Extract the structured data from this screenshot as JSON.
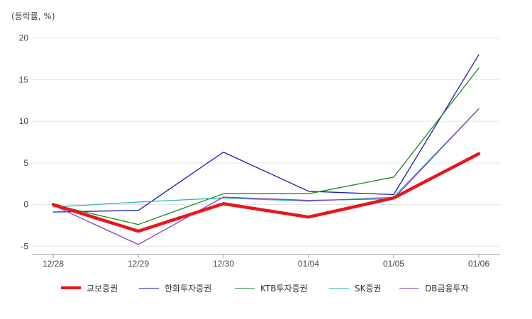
{
  "chart_data": {
    "type": "line",
    "unit_label": "(등락률, %)",
    "categories": [
      "12/28",
      "12/29",
      "12/30",
      "01/04",
      "01/05",
      "01/06"
    ],
    "ylim": [
      -6,
      21
    ],
    "yticks": [
      -5,
      0,
      5,
      10,
      15,
      20
    ],
    "grid": true,
    "legend_position": "bottom",
    "series": [
      {
        "name": "교보증권",
        "color": "#e8161b",
        "width": 4.5,
        "values": [
          0,
          -3.2,
          0.1,
          -1.5,
          0.8,
          6.1
        ]
      },
      {
        "name": "한화투자증권",
        "color": "#1a1ab8",
        "width": 1.3,
        "values": [
          -0.9,
          -0.7,
          6.3,
          1.6,
          1.2,
          18.0
        ]
      },
      {
        "name": "KTB투자증권",
        "color": "#1a8a1a",
        "width": 1.3,
        "values": [
          0,
          -2.4,
          1.3,
          1.3,
          3.3,
          16.4
        ]
      },
      {
        "name": "SK증권",
        "color": "#2bb3b3",
        "width": 1.3,
        "values": [
          -0.3,
          0.3,
          0.8,
          0.4,
          0.9,
          11.5
        ]
      },
      {
        "name": "DB금융투자",
        "color": "#8a3fc4",
        "width": 1.3,
        "values": [
          -0.1,
          -4.8,
          0.9,
          0.5,
          0.7,
          11.5
        ]
      }
    ]
  }
}
